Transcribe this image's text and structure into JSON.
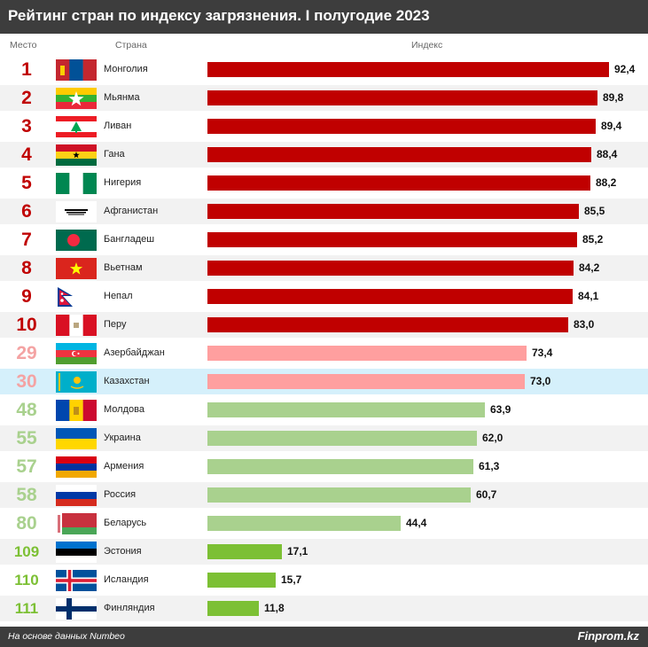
{
  "title": "Рейтинг стран по индексу загрязнения. I полугодие 2023",
  "columns": {
    "rank": "Место",
    "country": "Страна",
    "index": "Индекс"
  },
  "footer": {
    "source": "На основе данных Numbeo",
    "brand": "Finprom.kz"
  },
  "colors": {
    "header_bg": "#3d3d3d",
    "top10": "#c00000",
    "mid": "#ff9f9f",
    "low": "#a9d18e",
    "best": "#7cc034",
    "rank_mid": "#f4a3a3",
    "rank_low": "#a9d18e",
    "rank_best": "#7cc034",
    "highlight_row": "#d5f0fb",
    "stripe": "#f2f2f2"
  },
  "chart_data": {
    "type": "bar",
    "orientation": "horizontal",
    "title": "Рейтинг стран по индексу загрязнения. I полугодие 2023",
    "xlabel": "Индекс",
    "xlim": [
      0,
      100
    ],
    "rows": [
      {
        "rank": "1",
        "country": "Монголия",
        "value": 92.4,
        "label": "92,4",
        "group": "top10",
        "flag": "flag-mongolia"
      },
      {
        "rank": "2",
        "country": "Мьянма",
        "value": 89.8,
        "label": "89,8",
        "group": "top10",
        "flag": "flag-myanmar"
      },
      {
        "rank": "3",
        "country": "Ливан",
        "value": 89.4,
        "label": "89,4",
        "group": "top10",
        "flag": "flag-lebanon"
      },
      {
        "rank": "4",
        "country": "Гана",
        "value": 88.4,
        "label": "88,4",
        "group": "top10",
        "flag": "flag-ghana"
      },
      {
        "rank": "5",
        "country": "Нигерия",
        "value": 88.2,
        "label": "88,2",
        "group": "top10",
        "flag": "flag-nigeria"
      },
      {
        "rank": "6",
        "country": "Афганистан",
        "value": 85.5,
        "label": "85,5",
        "group": "top10",
        "flag": "flag-afghanistan"
      },
      {
        "rank": "7",
        "country": "Бангладеш",
        "value": 85.2,
        "label": "85,2",
        "group": "top10",
        "flag": "flag-bangladesh"
      },
      {
        "rank": "8",
        "country": "Вьетнам",
        "value": 84.2,
        "label": "84,2",
        "group": "top10",
        "flag": "flag-vietnam"
      },
      {
        "rank": "9",
        "country": "Непал",
        "value": 84.1,
        "label": "84,1",
        "group": "top10",
        "flag": "flag-nepal"
      },
      {
        "rank": "10",
        "country": "Перу",
        "value": 83.0,
        "label": "83,0",
        "group": "top10",
        "flag": "flag-peru"
      },
      {
        "rank": "29",
        "country": "Азербайджан",
        "value": 73.4,
        "label": "73,4",
        "group": "mid",
        "flag": "flag-azerbaijan"
      },
      {
        "rank": "30",
        "country": "Казахстан",
        "value": 73.0,
        "label": "73,0",
        "group": "mid",
        "flag": "flag-kazakhstan",
        "highlight": true
      },
      {
        "rank": "48",
        "country": "Молдова",
        "value": 63.9,
        "label": "63,9",
        "group": "low",
        "flag": "flag-moldova"
      },
      {
        "rank": "55",
        "country": "Украина",
        "value": 62.0,
        "label": "62,0",
        "group": "low",
        "flag": "flag-ukraine"
      },
      {
        "rank": "57",
        "country": "Армения",
        "value": 61.3,
        "label": "61,3",
        "group": "low",
        "flag": "flag-armenia"
      },
      {
        "rank": "58",
        "country": "Россия",
        "value": 60.7,
        "label": "60,7",
        "group": "low",
        "flag": "flag-russia"
      },
      {
        "rank": "80",
        "country": "Беларусь",
        "value": 44.4,
        "label": "44,4",
        "group": "low",
        "flag": "flag-belarus"
      },
      {
        "rank": "109",
        "country": "Эстония",
        "value": 17.1,
        "label": "17,1",
        "group": "best",
        "flag": "flag-estonia"
      },
      {
        "rank": "110",
        "country": "Исландия",
        "value": 15.7,
        "label": "15,7",
        "group": "best",
        "flag": "flag-iceland"
      },
      {
        "rank": "111",
        "country": "Финляндия",
        "value": 11.8,
        "label": "11,8",
        "group": "best",
        "flag": "flag-finland"
      }
    ]
  }
}
